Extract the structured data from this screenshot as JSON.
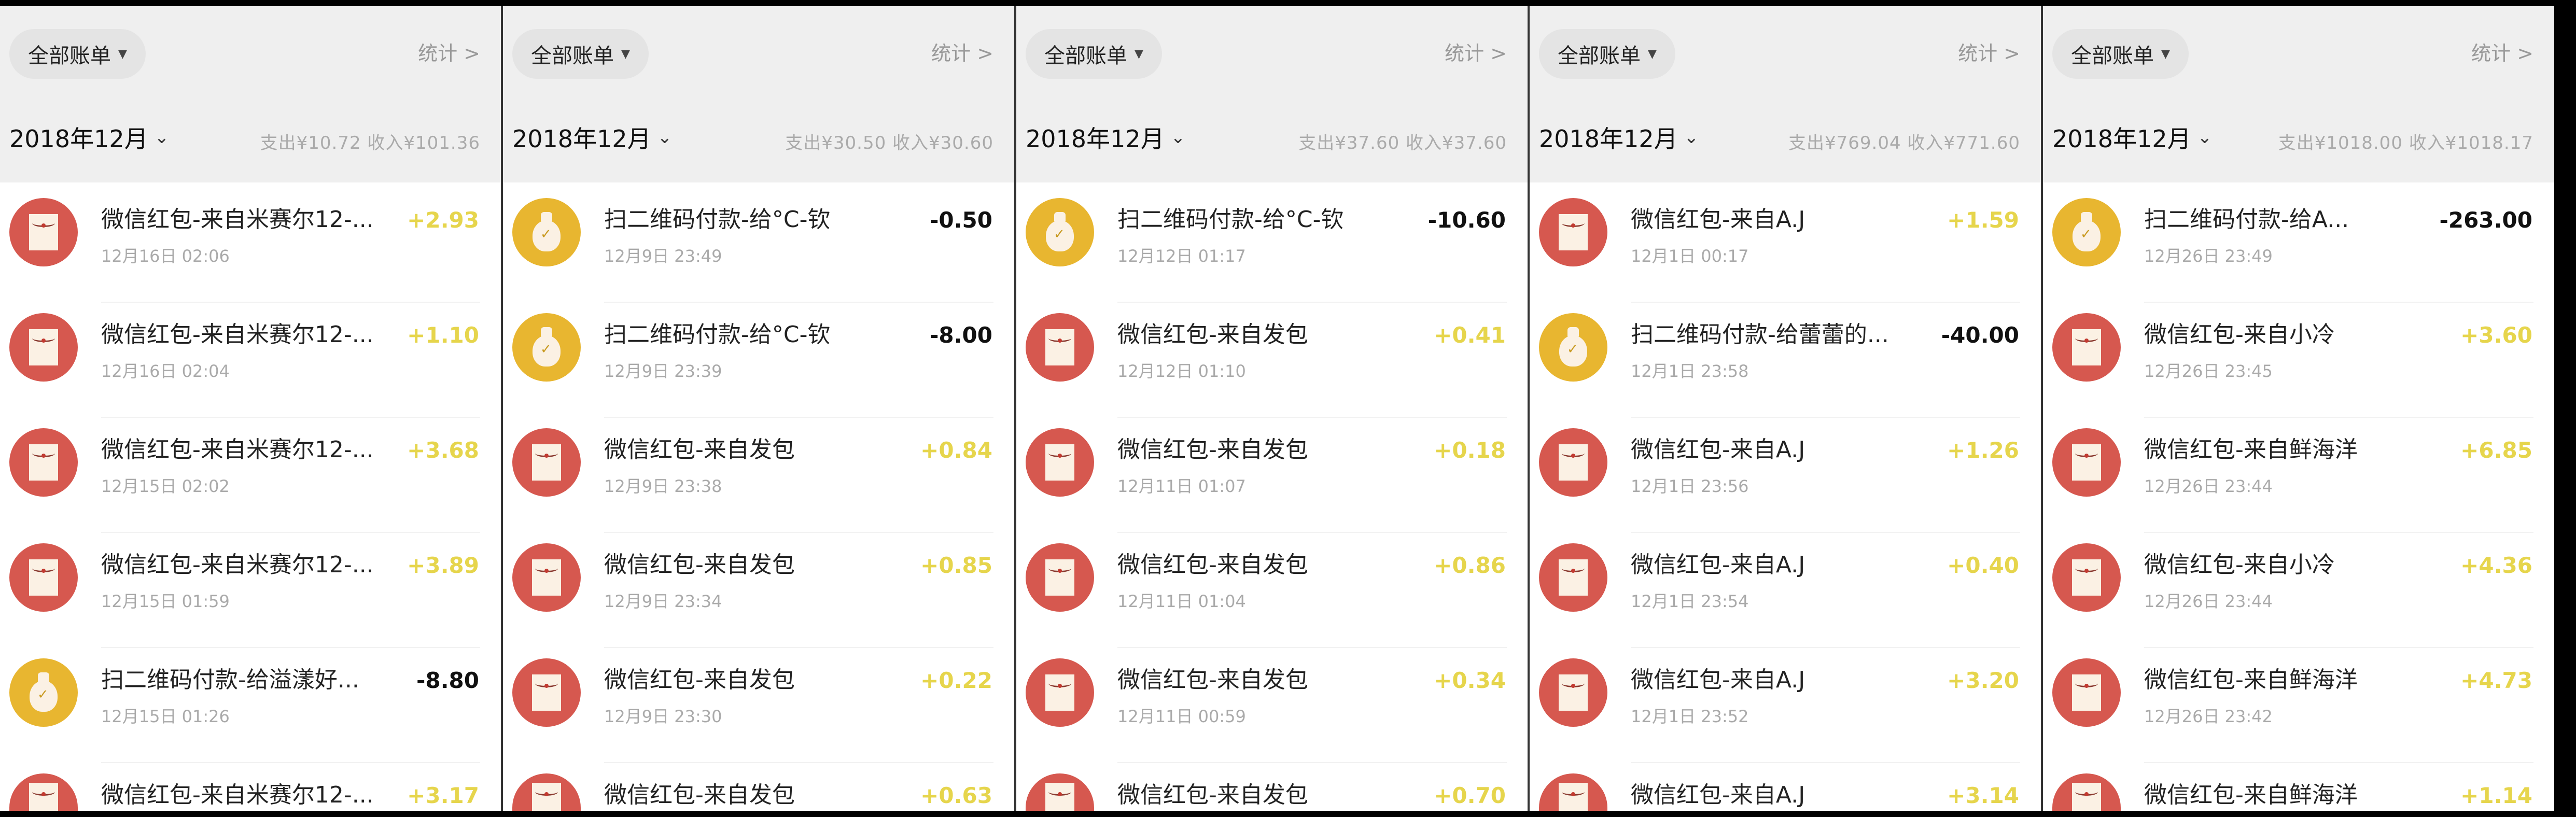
{
  "colors": {
    "red_packet": "#d6584f",
    "qr_payment": "#e8b630",
    "income": "#e6d54c",
    "expense": "#111111"
  },
  "panels": [
    {
      "filter": "全部账单",
      "stats": "统计 >",
      "month": "2018年12月",
      "summary": "支出¥10.72  收入¥101.36",
      "rows": [
        {
          "icon": "red-packet-icon",
          "title": "微信红包-来自米赛尔12-...",
          "date": "12月16日 02:06",
          "amount": "+2.93"
        },
        {
          "icon": "red-packet-icon",
          "title": "微信红包-来自米赛尔12-...",
          "date": "12月16日 02:04",
          "amount": "+1.10"
        },
        {
          "icon": "red-packet-icon",
          "title": "微信红包-来自米赛尔12-...",
          "date": "12月15日 02:02",
          "amount": "+3.68"
        },
        {
          "icon": "red-packet-icon",
          "title": "微信红包-来自米赛尔12-...",
          "date": "12月15日 01:59",
          "amount": "+3.89"
        },
        {
          "icon": "money-bag-icon",
          "title": "扫二维码付款-给溢漾好...",
          "date": "12月15日 01:26",
          "amount": "-8.80"
        },
        {
          "icon": "red-packet-icon",
          "title": "微信红包-来自米赛尔12-...",
          "date": "",
          "amount": "+3.17"
        }
      ]
    },
    {
      "filter": "全部账单",
      "stats": "统计 >",
      "month": "2018年12月",
      "summary": "支出¥30.50  收入¥30.60",
      "rows": [
        {
          "icon": "money-bag-icon",
          "title": "扫二维码付款-给°C-钦",
          "date": "12月9日 23:49",
          "amount": "-0.50"
        },
        {
          "icon": "money-bag-icon",
          "title": "扫二维码付款-给°C-钦",
          "date": "12月9日 23:39",
          "amount": "-8.00"
        },
        {
          "icon": "red-packet-icon",
          "title": "微信红包-来自发包",
          "date": "12月9日 23:38",
          "amount": "+0.84"
        },
        {
          "icon": "red-packet-icon",
          "title": "微信红包-来自发包",
          "date": "12月9日 23:34",
          "amount": "+0.85"
        },
        {
          "icon": "red-packet-icon",
          "title": "微信红包-来自发包",
          "date": "12月9日 23:30",
          "amount": "+0.22"
        },
        {
          "icon": "red-packet-icon",
          "title": "微信红包-来自发包",
          "date": "",
          "amount": "+0.63"
        }
      ]
    },
    {
      "filter": "全部账单",
      "stats": "统计 >",
      "month": "2018年12月",
      "summary": "支出¥37.60  收入¥37.60",
      "rows": [
        {
          "icon": "money-bag-icon",
          "title": "扫二维码付款-给°C-钦",
          "date": "12月12日 01:17",
          "amount": "-10.60"
        },
        {
          "icon": "red-packet-icon",
          "title": "微信红包-来自发包",
          "date": "12月12日 01:10",
          "amount": "+0.41"
        },
        {
          "icon": "red-packet-icon",
          "title": "微信红包-来自发包",
          "date": "12月11日 01:07",
          "amount": "+0.18"
        },
        {
          "icon": "red-packet-icon",
          "title": "微信红包-来自发包",
          "date": "12月11日 01:04",
          "amount": "+0.86"
        },
        {
          "icon": "red-packet-icon",
          "title": "微信红包-来自发包",
          "date": "12月11日 00:59",
          "amount": "+0.34"
        },
        {
          "icon": "red-packet-icon",
          "title": "微信红包-来自发包",
          "date": "",
          "amount": "+0.70"
        }
      ]
    },
    {
      "filter": "全部账单",
      "stats": "统计 >",
      "month": "2018年12月",
      "summary": "支出¥769.04  收入¥771.60",
      "rows": [
        {
          "icon": "red-packet-icon",
          "title": "微信红包-来自A.J",
          "date": "12月1日 00:17",
          "amount": "+1.59"
        },
        {
          "icon": "money-bag-icon",
          "title": "扫二维码付款-给蕾蕾的...",
          "date": "12月1日 23:58",
          "amount": "-40.00"
        },
        {
          "icon": "red-packet-icon",
          "title": "微信红包-来自A.J",
          "date": "12月1日 23:56",
          "amount": "+1.26"
        },
        {
          "icon": "red-packet-icon",
          "title": "微信红包-来自A.J",
          "date": "12月1日 23:54",
          "amount": "+0.40"
        },
        {
          "icon": "red-packet-icon",
          "title": "微信红包-来自A.J",
          "date": "12月1日 23:52",
          "amount": "+3.20"
        },
        {
          "icon": "red-packet-icon",
          "title": "微信红包-来自A.J",
          "date": "",
          "amount": "+3.14"
        }
      ]
    },
    {
      "filter": "全部账单",
      "stats": "统计 >",
      "month": "2018年12月",
      "summary": "支出¥1018.00  收入¥1018.17",
      "rows": [
        {
          "icon": "money-bag-icon",
          "title": "扫二维码付款-给A...",
          "date": "12月26日 23:49",
          "amount": "-263.00"
        },
        {
          "icon": "red-packet-icon",
          "title": "微信红包-来自小冷",
          "date": "12月26日 23:45",
          "amount": "+3.60"
        },
        {
          "icon": "red-packet-icon",
          "title": "微信红包-来自鲜海洋",
          "date": "12月26日 23:44",
          "amount": "+6.85"
        },
        {
          "icon": "red-packet-icon",
          "title": "微信红包-来自小冷",
          "date": "12月26日 23:44",
          "amount": "+4.36"
        },
        {
          "icon": "red-packet-icon",
          "title": "微信红包-来自鲜海洋",
          "date": "12月26日 23:42",
          "amount": "+4.73"
        },
        {
          "icon": "red-packet-icon",
          "title": "微信红包-来自鲜海洋",
          "date": "",
          "amount": "+1.14"
        }
      ]
    }
  ]
}
